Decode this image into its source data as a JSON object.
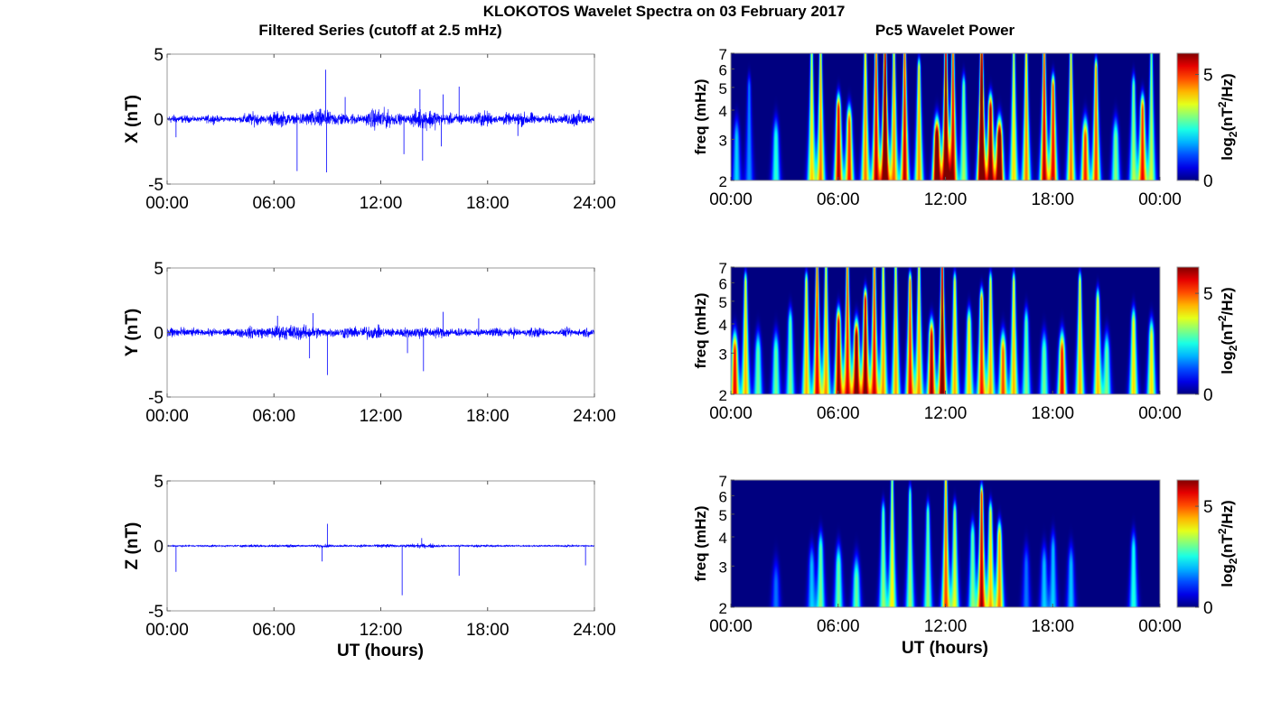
{
  "title": "KLOKOTOS Wavelet Spectra on 03 February 2017",
  "left_title": "Filtered Series (cutoff at 2.5 mHz)",
  "right_title": "Pc5 Wavelet Power",
  "xlabel": "UT (hours)",
  "chart_data": [
    {
      "type": "line",
      "panel": "X",
      "ylabel": "X (nT)",
      "ylim": [
        -5,
        5
      ],
      "yticks": [
        "-5",
        "0",
        "5"
      ],
      "xlim": [
        0,
        24
      ],
      "xticks": [
        "00:00",
        "06:00",
        "12:00",
        "18:00",
        "24:00"
      ],
      "color": "#0000ff",
      "noise_amplitude_nT": 0.25,
      "spikes": [
        [
          0.5,
          -1.4
        ],
        [
          7.3,
          -4.0
        ],
        [
          8.9,
          3.8
        ],
        [
          8.95,
          -4.1
        ],
        [
          10.0,
          1.7
        ],
        [
          13.3,
          -2.7
        ],
        [
          14.2,
          2.3
        ],
        [
          14.35,
          -3.2
        ],
        [
          15.4,
          -2.1
        ],
        [
          15.5,
          1.9
        ],
        [
          16.4,
          2.5
        ],
        [
          19.7,
          -1.3
        ]
      ]
    },
    {
      "type": "line",
      "panel": "Y",
      "ylabel": "Y (nT)",
      "ylim": [
        -5,
        5
      ],
      "yticks": [
        "-5",
        "0",
        "5"
      ],
      "xlim": [
        0,
        24
      ],
      "xticks": [
        "00:00",
        "06:00",
        "12:00",
        "18:00",
        "24:00"
      ],
      "color": "#0000ff",
      "noise_amplitude_nT": 0.2,
      "spikes": [
        [
          6.2,
          1.3
        ],
        [
          8.0,
          -2.0
        ],
        [
          8.2,
          1.5
        ],
        [
          9.0,
          -3.3
        ],
        [
          14.4,
          -3.0
        ],
        [
          15.5,
          1.6
        ],
        [
          13.5,
          -1.6
        ],
        [
          17.5,
          1.1
        ]
      ]
    },
    {
      "type": "line",
      "panel": "Z",
      "ylabel": "Z (nT)",
      "ylim": [
        -5,
        5
      ],
      "yticks": [
        "-5",
        "0",
        "5"
      ],
      "xlim": [
        0,
        24
      ],
      "xticks": [
        "00:00",
        "06:00",
        "12:00",
        "18:00",
        "24:00"
      ],
      "color": "#0000ff",
      "noise_amplitude_nT": 0.07,
      "spikes": [
        [
          0.5,
          -2.0
        ],
        [
          8.7,
          -1.2
        ],
        [
          9.0,
          1.7
        ],
        [
          13.2,
          -3.8
        ],
        [
          14.3,
          0.6
        ],
        [
          16.4,
          -2.3
        ],
        [
          23.5,
          -1.5
        ]
      ]
    },
    {
      "type": "heatmap",
      "panel": "X",
      "ylabel": "freq (mHz)",
      "yscale": "log",
      "ylim": [
        2,
        7
      ],
      "yticks": [
        "2",
        "3",
        "4",
        "5",
        "6",
        "7"
      ],
      "xticks": [
        "00:00",
        "06:00",
        "12:00",
        "18:00",
        "00:00"
      ],
      "colorbar_label": "log2(nT^2/Hz)",
      "colorbar_ticks": [
        "0",
        "5"
      ],
      "clim": [
        0,
        6
      ],
      "events_hour_power_fmax": [
        [
          0.3,
          2,
          3
        ],
        [
          1,
          1.5,
          5
        ],
        [
          2.5,
          2.5,
          3
        ],
        [
          4.5,
          3.5,
          7
        ],
        [
          5,
          4,
          7
        ],
        [
          6,
          5.5,
          4
        ],
        [
          6.6,
          5,
          3.5
        ],
        [
          7.5,
          4,
          7
        ],
        [
          8.1,
          5,
          7
        ],
        [
          8.6,
          6.5,
          7
        ],
        [
          9.1,
          4,
          7
        ],
        [
          9.7,
          5,
          7
        ],
        [
          10.5,
          4,
          6
        ],
        [
          11.5,
          7,
          3
        ],
        [
          12,
          6,
          7
        ],
        [
          12.4,
          5,
          7
        ],
        [
          13,
          3,
          5
        ],
        [
          14,
          7,
          7
        ],
        [
          14.5,
          6,
          4
        ],
        [
          15,
          7,
          3
        ],
        [
          15.8,
          3.5,
          7
        ],
        [
          16.5,
          4,
          7
        ],
        [
          17.5,
          5,
          7
        ],
        [
          18,
          5,
          5
        ],
        [
          19,
          4,
          7
        ],
        [
          19.8,
          5,
          3
        ],
        [
          20.4,
          4.5,
          6
        ],
        [
          21.5,
          3,
          3
        ],
        [
          22.5,
          3,
          5
        ],
        [
          23,
          5,
          4
        ],
        [
          23.5,
          3,
          7
        ]
      ]
    },
    {
      "type": "heatmap",
      "panel": "Y",
      "ylabel": "freq (mHz)",
      "yscale": "log",
      "ylim": [
        2,
        7
      ],
      "yticks": [
        "2",
        "3",
        "4",
        "5",
        "6",
        "7"
      ],
      "xticks": [
        "00:00",
        "06:00",
        "12:00",
        "18:00",
        "00:00"
      ],
      "colorbar_label": "log2(nT^2/Hz)",
      "colorbar_ticks": [
        "0",
        "5"
      ],
      "clim": [
        0,
        6.3
      ],
      "events_hour_power_fmax": [
        [
          0.2,
          5.5,
          3
        ],
        [
          0.8,
          4,
          6
        ],
        [
          1.5,
          3,
          3
        ],
        [
          2.5,
          3,
          3
        ],
        [
          3.3,
          3,
          4
        ],
        [
          4.2,
          4,
          6
        ],
        [
          4.8,
          5,
          7
        ],
        [
          5.3,
          4,
          7
        ],
        [
          6,
          6,
          4
        ],
        [
          6.5,
          5,
          7
        ],
        [
          7,
          6.5,
          3.5
        ],
        [
          7.5,
          6,
          5
        ],
        [
          8,
          5,
          7
        ],
        [
          8.5,
          4,
          7
        ],
        [
          9.2,
          4,
          7
        ],
        [
          10,
          5,
          6
        ],
        [
          10.5,
          4,
          7
        ],
        [
          11.2,
          6,
          3.5
        ],
        [
          11.8,
          6,
          7
        ],
        [
          12.5,
          4,
          6
        ],
        [
          13.3,
          4,
          4
        ],
        [
          14,
          5,
          5
        ],
        [
          14.5,
          4,
          6
        ],
        [
          15.2,
          5,
          3
        ],
        [
          15.8,
          4,
          6
        ],
        [
          16.5,
          3,
          4
        ],
        [
          17.5,
          3,
          3
        ],
        [
          18.5,
          5.5,
          3
        ],
        [
          19.5,
          4,
          6
        ],
        [
          20.5,
          4,
          5
        ],
        [
          21,
          3,
          3
        ],
        [
          22.5,
          4,
          4
        ],
        [
          23.5,
          4,
          3.5
        ]
      ]
    },
    {
      "type": "heatmap",
      "panel": "Z",
      "ylabel": "freq (mHz)",
      "yscale": "log",
      "ylim": [
        2,
        7
      ],
      "yticks": [
        "2",
        "3",
        "4",
        "5",
        "6",
        "7"
      ],
      "xticks": [
        "00:00",
        "06:00",
        "12:00",
        "18:00",
        "00:00"
      ],
      "colorbar_label": "log2(nT^2/Hz)",
      "colorbar_ticks": [
        "0",
        "5"
      ],
      "clim": [
        0,
        6.3
      ],
      "events_hour_power_fmax": [
        [
          2.5,
          1.5,
          2.5
        ],
        [
          4.5,
          2,
          3
        ],
        [
          5,
          3,
          3.5
        ],
        [
          6,
          3,
          3
        ],
        [
          7,
          3,
          2.6
        ],
        [
          8.5,
          3,
          5
        ],
        [
          9,
          3.5,
          7
        ],
        [
          10,
          3,
          6
        ],
        [
          11,
          3,
          5
        ],
        [
          12,
          4.5,
          7
        ],
        [
          12.5,
          3.5,
          5
        ],
        [
          13.5,
          3,
          4
        ],
        [
          14,
          5.5,
          6
        ],
        [
          14.5,
          4,
          5
        ],
        [
          15,
          4.5,
          4
        ],
        [
          16.5,
          1.5,
          3
        ],
        [
          17.5,
          2,
          3
        ],
        [
          18,
          2,
          3.5
        ],
        [
          19,
          2,
          3
        ],
        [
          22.5,
          2.5,
          3.5
        ]
      ]
    }
  ]
}
